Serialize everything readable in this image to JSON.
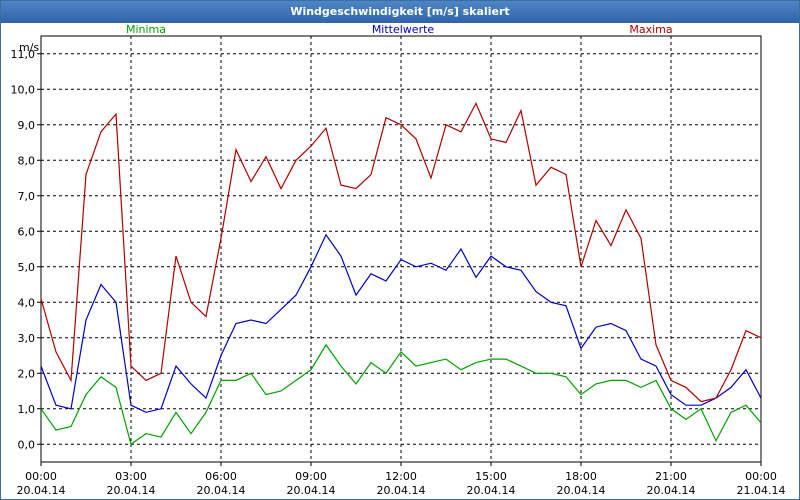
{
  "window": {
    "title": "Windgeschwindigkeit [m/s] skaliert"
  },
  "chart_data": {
    "type": "line",
    "ylabel": "m/s",
    "ylim": [
      -0.5,
      11.5
    ],
    "yticks": [
      "0,0",
      "1,0",
      "2,0",
      "3,0",
      "4,0",
      "5,0",
      "6,0",
      "7,0",
      "8,0",
      "9,0",
      "10,0",
      "11,0"
    ],
    "xlim": [
      0,
      24
    ],
    "xticks": [
      {
        "time": "00:00",
        "date": "20.04.14"
      },
      {
        "time": "03:00",
        "date": "20.04.14"
      },
      {
        "time": "06:00",
        "date": "20.04.14"
      },
      {
        "time": "09:00",
        "date": "20.04.14"
      },
      {
        "time": "12:00",
        "date": "20.04.14"
      },
      {
        "time": "15:00",
        "date": "20.04.14"
      },
      {
        "time": "18:00",
        "date": "20.04.14"
      },
      {
        "time": "21:00",
        "date": "20.04.14"
      },
      {
        "time": "00:00",
        "date": "21.04.14"
      }
    ],
    "grid": true,
    "series": [
      {
        "name": "Minima",
        "color": "#00a000",
        "x": [
          0,
          0.5,
          1,
          1.5,
          2,
          2.5,
          3,
          3.5,
          4,
          4.5,
          5,
          5.5,
          6,
          6.5,
          7,
          7.5,
          8,
          8.5,
          9,
          9.5,
          10,
          10.5,
          11,
          11.5,
          12,
          12.5,
          13,
          13.5,
          14,
          14.5,
          15,
          15.5,
          16,
          16.5,
          17,
          17.5,
          18,
          18.5,
          19,
          19.5,
          20,
          20.5,
          21,
          21.5,
          22,
          22.5,
          23,
          23.5,
          24
        ],
        "values": [
          1.0,
          0.4,
          0.5,
          1.4,
          1.9,
          1.6,
          0.0,
          0.3,
          0.2,
          0.9,
          0.3,
          0.9,
          1.8,
          1.8,
          2.0,
          1.4,
          1.5,
          1.8,
          2.1,
          2.8,
          2.2,
          1.7,
          2.3,
          2.0,
          2.6,
          2.2,
          2.3,
          2.4,
          2.1,
          2.3,
          2.4,
          2.4,
          2.2,
          2.0,
          2.0,
          1.9,
          1.4,
          1.7,
          1.8,
          1.8,
          1.6,
          1.8,
          1.0,
          0.7,
          1.0,
          0.1,
          0.9,
          1.1,
          0.6
        ]
      },
      {
        "name": "Mittelwerte",
        "color": "#0000c8",
        "x": [
          0,
          0.5,
          1,
          1.5,
          2,
          2.5,
          3,
          3.5,
          4,
          4.5,
          5,
          5.5,
          6,
          6.5,
          7,
          7.5,
          8,
          8.5,
          9,
          9.5,
          10,
          10.5,
          11,
          11.5,
          12,
          12.5,
          13,
          13.5,
          14,
          14.5,
          15,
          15.5,
          16,
          16.5,
          17,
          17.5,
          18,
          18.5,
          19,
          19.5,
          20,
          20.5,
          21,
          21.5,
          22,
          22.5,
          23,
          23.5,
          24
        ],
        "values": [
          2.2,
          1.1,
          1.0,
          3.5,
          4.5,
          4.0,
          1.1,
          0.9,
          1.0,
          2.2,
          1.7,
          1.3,
          2.5,
          3.4,
          3.5,
          3.4,
          3.8,
          4.2,
          5.0,
          5.9,
          5.3,
          4.2,
          4.8,
          4.6,
          5.2,
          5.0,
          5.1,
          4.9,
          5.5,
          4.7,
          5.3,
          5.0,
          4.9,
          4.3,
          4.0,
          3.9,
          2.7,
          3.3,
          3.4,
          3.2,
          2.4,
          2.2,
          1.4,
          1.1,
          1.1,
          1.3,
          1.6,
          2.1,
          1.3
        ]
      },
      {
        "name": "Maxima",
        "color": "#b00000",
        "x": [
          0,
          0.5,
          1,
          1.5,
          2,
          2.5,
          3,
          3.5,
          4,
          4.5,
          5,
          5.5,
          6,
          6.5,
          7,
          7.5,
          8,
          8.5,
          9,
          9.5,
          10,
          10.5,
          11,
          11.5,
          12,
          12.5,
          13,
          13.5,
          14,
          14.5,
          15,
          15.5,
          16,
          16.5,
          17,
          17.5,
          18,
          18.5,
          19,
          19.5,
          20,
          20.5,
          21,
          21.5,
          22,
          22.5,
          23,
          23.5,
          24
        ],
        "values": [
          4.1,
          2.6,
          1.8,
          7.6,
          8.8,
          9.3,
          2.2,
          1.8,
          2.0,
          5.3,
          4.0,
          3.6,
          5.8,
          8.3,
          7.4,
          8.1,
          7.2,
          8.0,
          8.4,
          8.9,
          7.3,
          7.2,
          7.6,
          9.2,
          9.0,
          8.6,
          7.5,
          9.0,
          8.8,
          9.6,
          8.6,
          8.5,
          9.4,
          7.3,
          7.8,
          7.6,
          5.0,
          6.3,
          5.6,
          6.6,
          5.8,
          2.8,
          1.8,
          1.6,
          1.2,
          1.3,
          2.1,
          3.2,
          3.0
        ]
      }
    ]
  }
}
